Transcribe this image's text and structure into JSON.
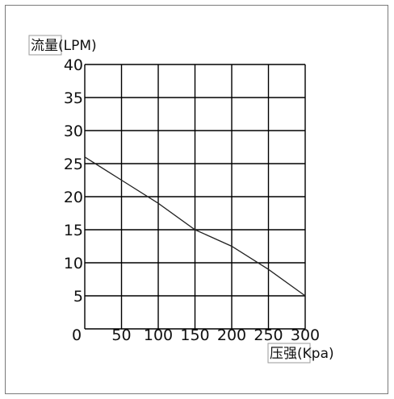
{
  "chart_data": {
    "type": "line",
    "title": "",
    "xlabel": "压强(Kpa)",
    "ylabel": "流量(LPM)",
    "x_ticks": [
      "0",
      "50",
      "100",
      "150",
      "200",
      "250",
      "300"
    ],
    "y_ticks": [
      "5",
      "10",
      "15",
      "20",
      "25",
      "30",
      "35",
      "40"
    ],
    "xlim": [
      0,
      300
    ],
    "ylim": [
      0,
      40
    ],
    "grid": true,
    "series": [
      {
        "x": [
          0,
          50,
          100,
          150,
          200,
          250,
          300
        ],
        "y": [
          26,
          22.5,
          19,
          15,
          12.5,
          9,
          5
        ]
      }
    ],
    "colors": {
      "line": "#222222",
      "grid": "#000000"
    }
  }
}
